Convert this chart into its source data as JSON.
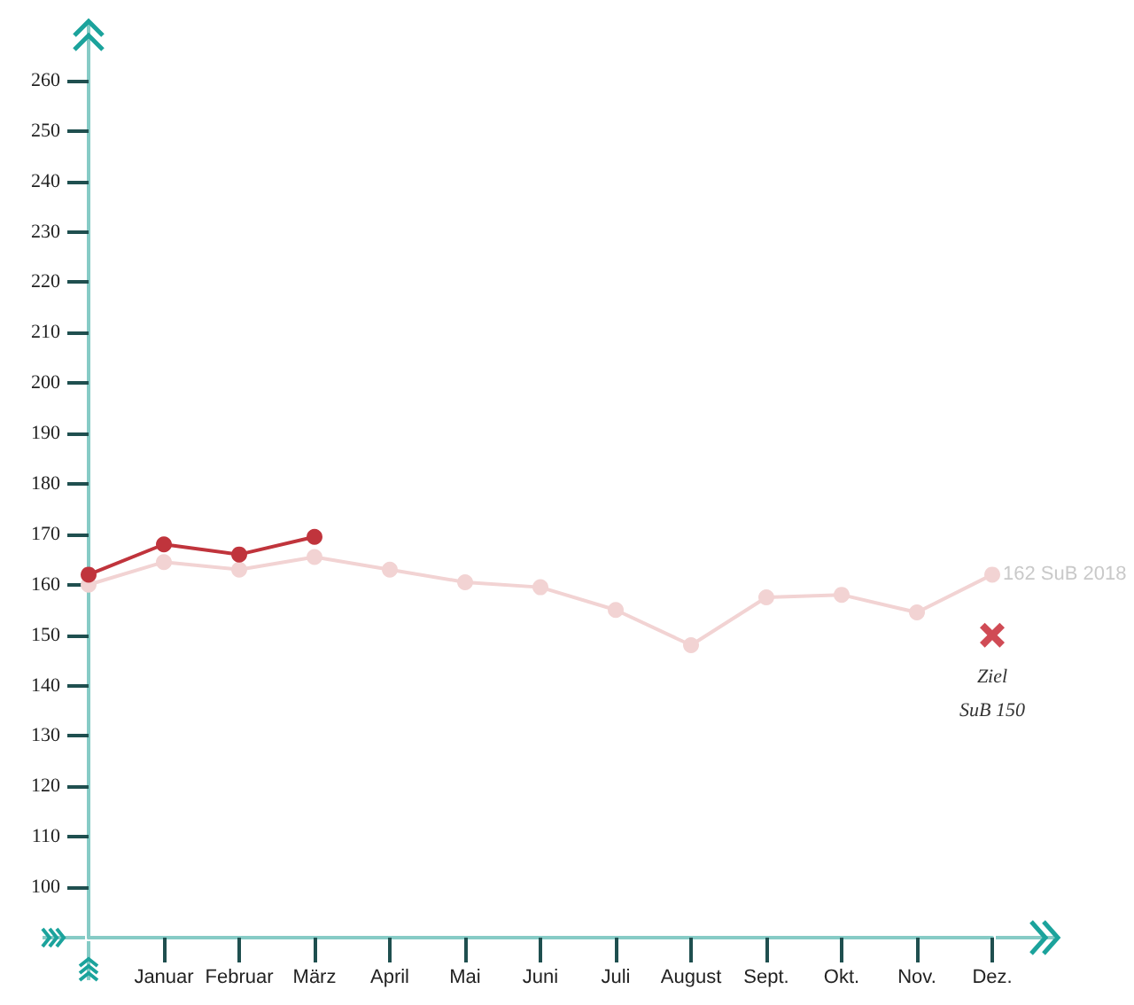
{
  "chart_data": {
    "type": "line",
    "categories": [
      null,
      "Januar",
      "Februar",
      "März",
      "April",
      "Mai",
      "Juni",
      "Juli",
      "August",
      "Sept.",
      "Okt.",
      "Nov.",
      "Dez."
    ],
    "series": [
      {
        "color": "#f2d3d3",
        "values": [
          160,
          164.5,
          163,
          165.5,
          163,
          160.5,
          159.5,
          155,
          148,
          157.5,
          158,
          154.5,
          162
        ]
      },
      {
        "color": "#c0343c",
        "values": [
          162,
          168,
          166,
          169.5,
          null,
          null,
          null,
          null,
          null,
          null,
          null,
          null,
          null
        ]
      },
      {
        "type": "scatter",
        "marker": "cross",
        "color": "#c41e2a",
        "values": [
          null,
          null,
          null,
          null,
          null,
          null,
          null,
          null,
          null,
          null,
          null,
          null,
          150
        ]
      }
    ],
    "ylim": [
      90,
      270
    ],
    "yticks": [
      100,
      110,
      120,
      130,
      140,
      150,
      160,
      170,
      180,
      190,
      200,
      210,
      220,
      230,
      240,
      250,
      260
    ],
    "marker": "circle",
    "line_style": "solid",
    "annotations": [
      {
        "text": "162 SuB 2018",
        "x": "Dez.",
        "y": 162
      },
      {
        "text": "Ziel\nSuB 150",
        "x": "Dez.",
        "y": 150
      }
    ]
  }
}
